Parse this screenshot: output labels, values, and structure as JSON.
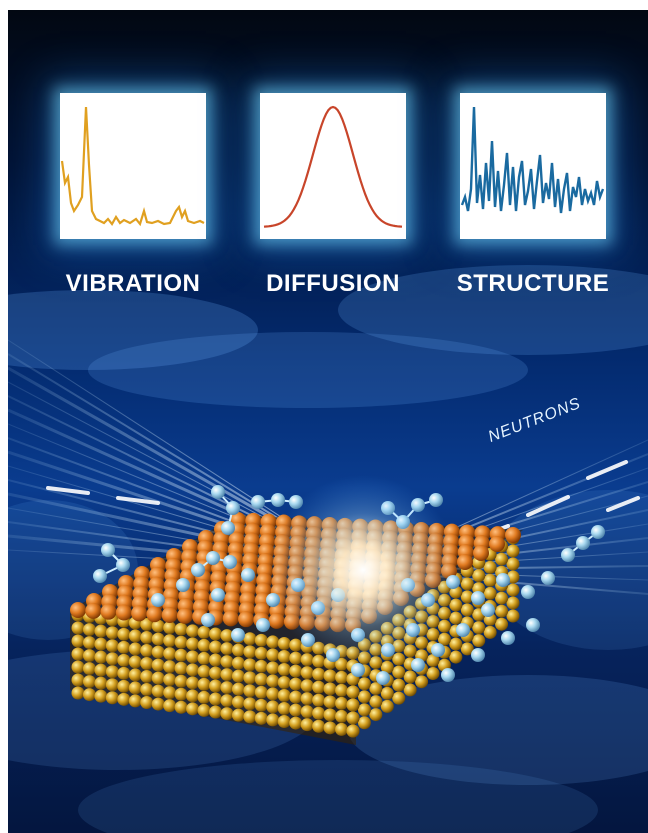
{
  "panels": [
    {
      "label": "VIBRATION",
      "curve_color": "#e0a020",
      "curve": "vibration-spectrum"
    },
    {
      "label": "DIFFUSION",
      "curve_color": "#c8452a",
      "curve": "gaussian-peak"
    },
    {
      "label": "STRUCTURE",
      "curve_color": "#1a6aa0",
      "curve": "structure-factor"
    }
  ],
  "beam_label": "NEUTRONS",
  "colors": {
    "background_dark": "#020812",
    "background_blue": "#0a3c8f",
    "panel_glow": "#78dcff",
    "atom_gold": "#d4a020",
    "atom_orange": "#e07a20",
    "molecule_blue": "#a8d8ef"
  }
}
